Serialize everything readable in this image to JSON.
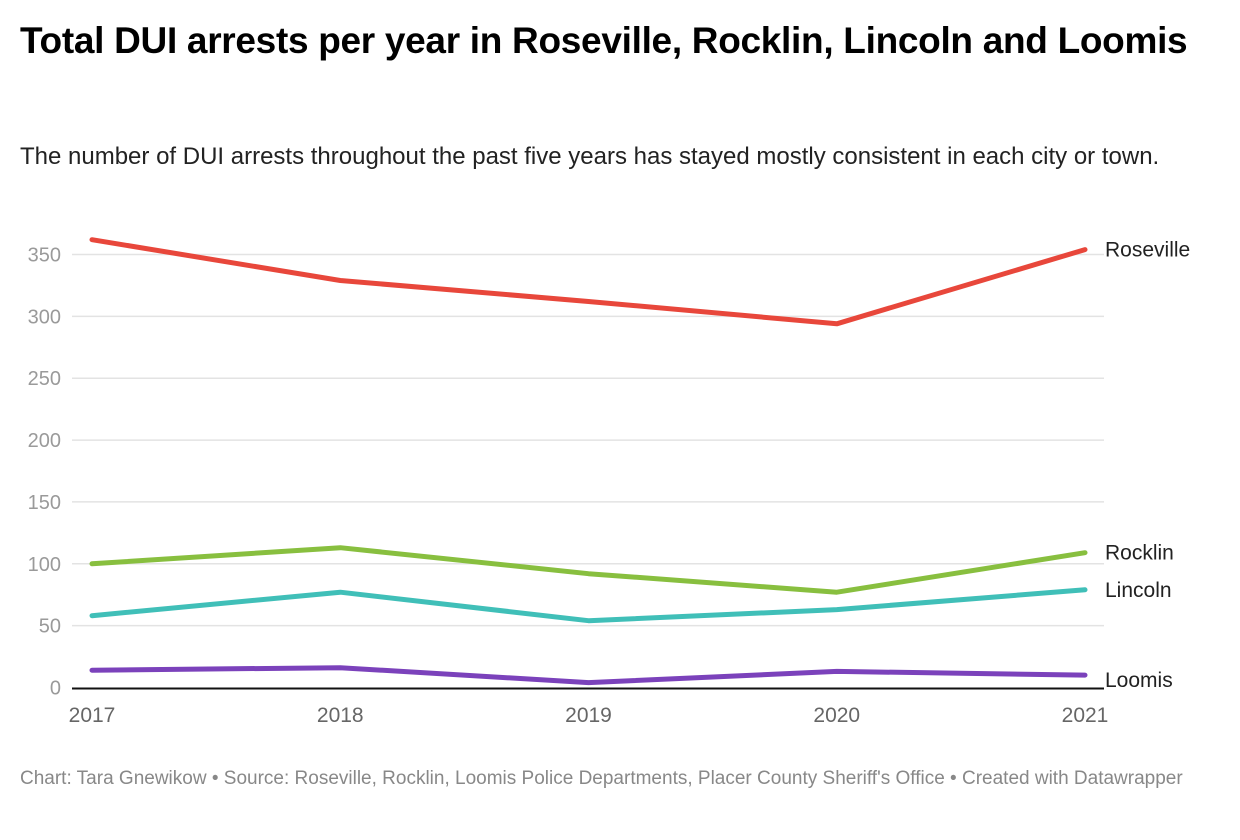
{
  "chart_data": {
    "type": "line",
    "title": "Total DUI arrests per year in Roseville, Rocklin, Lincoln and Loomis",
    "subtitle": "The number of DUI arrests throughout the past five years has stayed mostly consistent in each city or town.",
    "xlabel": "",
    "ylabel": "",
    "x": [
      "2017",
      "2018",
      "2019",
      "2020",
      "2021"
    ],
    "yticks": [
      0,
      50,
      100,
      150,
      200,
      250,
      300,
      350
    ],
    "ylim": [
      0,
      365
    ],
    "grid": true,
    "legend": "inline-labels-right",
    "series": [
      {
        "name": "Roseville",
        "color": "#e8473b",
        "values": [
          362,
          329,
          312,
          294,
          354
        ]
      },
      {
        "name": "Rocklin",
        "color": "#88bf3f",
        "values": [
          100,
          113,
          92,
          77,
          109
        ]
      },
      {
        "name": "Lincoln",
        "color": "#40bfb8",
        "values": [
          58,
          77,
          54,
          63,
          79
        ]
      },
      {
        "name": "Loomis",
        "color": "#7b42bb",
        "values": [
          14,
          16,
          4,
          13,
          10
        ]
      }
    ]
  },
  "footer": {
    "text": "Chart: Tara Gnewikow • Source: Roseville, Rocklin, Loomis Police Departments, Placer County Sheriff's Office • Created with Datawrapper"
  }
}
